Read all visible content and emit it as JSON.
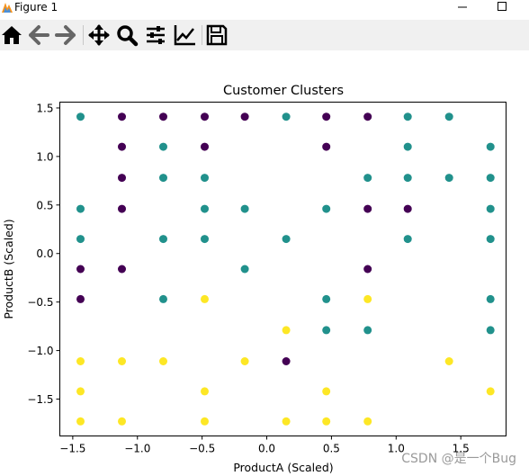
{
  "window": {
    "title": "Figure 1",
    "controls": {
      "minimize": "—",
      "maximize": "☐"
    }
  },
  "toolbar": {
    "items": [
      {
        "name": "home",
        "icon": "home-icon"
      },
      {
        "name": "back",
        "icon": "back-arrow-icon"
      },
      {
        "name": "forward",
        "icon": "forward-arrow-icon"
      },
      {
        "name": "pan",
        "icon": "pan-move-icon"
      },
      {
        "name": "zoom",
        "icon": "zoom-magnifier-icon"
      },
      {
        "name": "configure-subplots",
        "icon": "sliders-icon"
      },
      {
        "name": "edit-axis",
        "icon": "axis-line-icon"
      },
      {
        "name": "save",
        "icon": "floppy-save-icon"
      }
    ]
  },
  "watermark": "CSDN @是一个Bug",
  "chart_data": {
    "type": "scatter",
    "title": "Customer Clusters",
    "xlabel": "ProductA (Scaled)",
    "ylabel": "ProductB (Scaled)",
    "xlim": [
      -1.6,
      1.85
    ],
    "ylim": [
      -1.88,
      1.56
    ],
    "xticks": [
      -1.5,
      -1.0,
      -0.5,
      0.0,
      0.5,
      1.0,
      1.5
    ],
    "xtick_labels": [
      "−1.5",
      "−1.0",
      "−0.5",
      "0.0",
      "0.5",
      "1.0",
      "1.5"
    ],
    "yticks": [
      1.5,
      1.0,
      0.5,
      0.0,
      -0.5,
      -1.0,
      -1.5
    ],
    "ytick_labels": [
      "1.5",
      "1.0",
      "0.5",
      "0.0",
      "−0.5",
      "−1.0",
      "−1.5"
    ],
    "grid": false,
    "legend": false,
    "cluster_colors": [
      "#440154",
      "#21918c",
      "#fde725"
    ],
    "points": [
      {
        "x": -1.44,
        "y": 1.41,
        "c": 1
      },
      {
        "x": -1.12,
        "y": 1.41,
        "c": 0
      },
      {
        "x": -0.8,
        "y": 1.41,
        "c": 0
      },
      {
        "x": -0.48,
        "y": 1.41,
        "c": 0
      },
      {
        "x": -0.17,
        "y": 1.41,
        "c": 0
      },
      {
        "x": 0.15,
        "y": 1.41,
        "c": 1
      },
      {
        "x": 0.46,
        "y": 1.41,
        "c": 0
      },
      {
        "x": 0.78,
        "y": 1.41,
        "c": 0
      },
      {
        "x": 1.09,
        "y": 1.41,
        "c": 1
      },
      {
        "x": 1.41,
        "y": 1.41,
        "c": 1
      },
      {
        "x": -1.12,
        "y": 1.1,
        "c": 0
      },
      {
        "x": -0.8,
        "y": 1.1,
        "c": 1
      },
      {
        "x": -0.48,
        "y": 1.1,
        "c": 0
      },
      {
        "x": 0.46,
        "y": 1.1,
        "c": 0
      },
      {
        "x": 1.09,
        "y": 1.1,
        "c": 1
      },
      {
        "x": 1.73,
        "y": 1.1,
        "c": 1
      },
      {
        "x": -1.12,
        "y": 0.78,
        "c": 0
      },
      {
        "x": -0.8,
        "y": 0.78,
        "c": 1
      },
      {
        "x": -0.48,
        "y": 0.78,
        "c": 1
      },
      {
        "x": 0.78,
        "y": 0.78,
        "c": 1
      },
      {
        "x": 1.09,
        "y": 0.78,
        "c": 1
      },
      {
        "x": 1.41,
        "y": 0.78,
        "c": 1
      },
      {
        "x": 1.73,
        "y": 0.78,
        "c": 1
      },
      {
        "x": -1.44,
        "y": 0.46,
        "c": 1
      },
      {
        "x": -1.12,
        "y": 0.46,
        "c": 0
      },
      {
        "x": -0.48,
        "y": 0.46,
        "c": 1
      },
      {
        "x": -0.17,
        "y": 0.46,
        "c": 1
      },
      {
        "x": 0.46,
        "y": 0.46,
        "c": 1
      },
      {
        "x": 0.78,
        "y": 0.46,
        "c": 0
      },
      {
        "x": 1.09,
        "y": 0.46,
        "c": 0
      },
      {
        "x": 1.73,
        "y": 0.46,
        "c": 1
      },
      {
        "x": -1.44,
        "y": 0.15,
        "c": 1
      },
      {
        "x": -0.8,
        "y": 0.15,
        "c": 1
      },
      {
        "x": -0.48,
        "y": 0.15,
        "c": 1
      },
      {
        "x": 0.15,
        "y": 0.15,
        "c": 1
      },
      {
        "x": 1.09,
        "y": 0.15,
        "c": 1
      },
      {
        "x": 1.73,
        "y": 0.15,
        "c": 1
      },
      {
        "x": -1.44,
        "y": -0.16,
        "c": 0
      },
      {
        "x": -1.12,
        "y": -0.16,
        "c": 0
      },
      {
        "x": -0.17,
        "y": -0.16,
        "c": 1
      },
      {
        "x": 0.78,
        "y": -0.16,
        "c": 0
      },
      {
        "x": -1.44,
        "y": -0.47,
        "c": 0
      },
      {
        "x": -0.8,
        "y": -0.47,
        "c": 1
      },
      {
        "x": -0.48,
        "y": -0.47,
        "c": 2
      },
      {
        "x": 0.46,
        "y": -0.47,
        "c": 1
      },
      {
        "x": 0.78,
        "y": -0.47,
        "c": 2
      },
      {
        "x": 1.73,
        "y": -0.47,
        "c": 1
      },
      {
        "x": 0.15,
        "y": -0.79,
        "c": 2
      },
      {
        "x": 0.46,
        "y": -0.79,
        "c": 1
      },
      {
        "x": 0.78,
        "y": -0.79,
        "c": 1
      },
      {
        "x": 1.73,
        "y": -0.79,
        "c": 1
      },
      {
        "x": -1.44,
        "y": -1.11,
        "c": 2
      },
      {
        "x": -1.12,
        "y": -1.11,
        "c": 2
      },
      {
        "x": -0.8,
        "y": -1.11,
        "c": 2
      },
      {
        "x": -0.17,
        "y": -1.11,
        "c": 2
      },
      {
        "x": 0.15,
        "y": -1.11,
        "c": 0
      },
      {
        "x": 1.41,
        "y": -1.11,
        "c": 2
      },
      {
        "x": -1.44,
        "y": -1.42,
        "c": 2
      },
      {
        "x": -0.48,
        "y": -1.42,
        "c": 2
      },
      {
        "x": 0.46,
        "y": -1.42,
        "c": 2
      },
      {
        "x": 1.73,
        "y": -1.42,
        "c": 2
      },
      {
        "x": -1.44,
        "y": -1.73,
        "c": 2
      },
      {
        "x": -1.12,
        "y": -1.73,
        "c": 2
      },
      {
        "x": -0.48,
        "y": -1.73,
        "c": 2
      },
      {
        "x": 0.15,
        "y": -1.73,
        "c": 2
      },
      {
        "x": 0.46,
        "y": -1.73,
        "c": 2
      },
      {
        "x": 0.78,
        "y": -1.73,
        "c": 2
      }
    ]
  }
}
